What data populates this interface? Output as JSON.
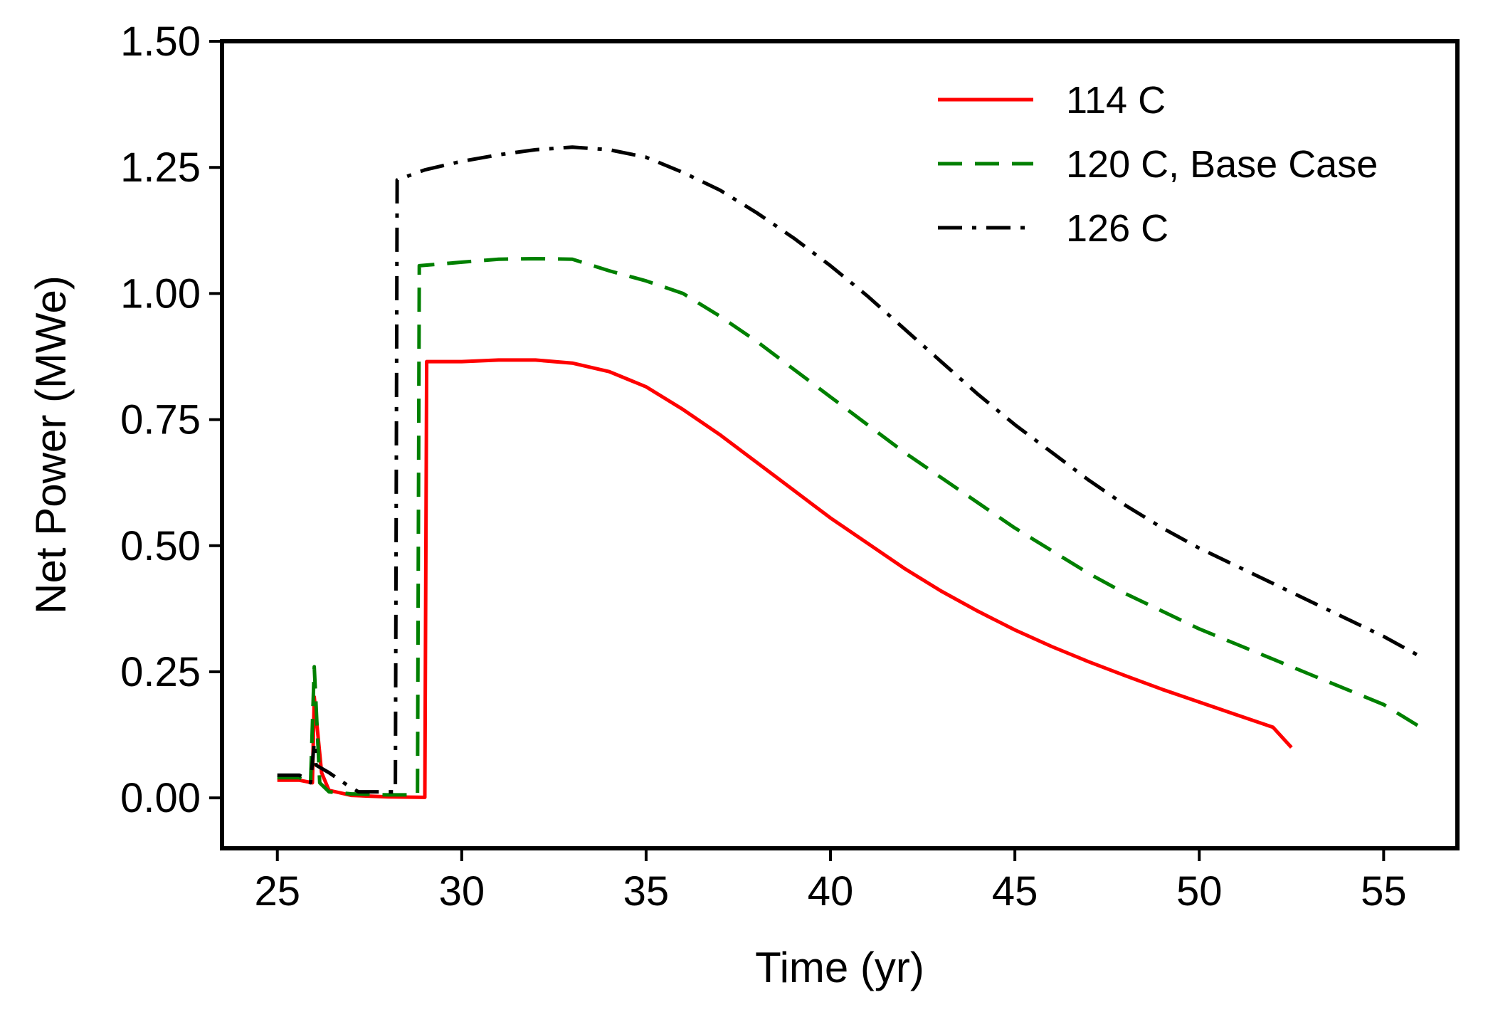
{
  "chart_data": {
    "type": "line",
    "title": "",
    "xlabel": "Time (yr)",
    "ylabel": "Net Power (MWe)",
    "xlim": [
      23.5,
      57.0
    ],
    "ylim": [
      -0.1,
      1.5
    ],
    "xticks": [
      25,
      30,
      35,
      40,
      45,
      50,
      55
    ],
    "yticks": [
      0.0,
      0.25,
      0.5,
      0.75,
      1.0,
      1.25,
      1.5
    ],
    "xtick_labels": [
      "25",
      "30",
      "35",
      "40",
      "45",
      "50",
      "55"
    ],
    "ytick_labels": [
      "0.00",
      "0.25",
      "0.50",
      "0.75",
      "1.00",
      "1.25",
      "1.50"
    ],
    "grid": false,
    "legend_position": "top-right",
    "series": [
      {
        "name": "114 C",
        "color": "#ff0000",
        "style": "solid",
        "points": [
          [
            25.0,
            0.035
          ],
          [
            25.6,
            0.035
          ],
          [
            25.95,
            0.03
          ],
          [
            26.0,
            0.2
          ],
          [
            26.2,
            0.05
          ],
          [
            26.4,
            0.015
          ],
          [
            27.0,
            0.005
          ],
          [
            28.0,
            0.002
          ],
          [
            29.0,
            0.001
          ],
          [
            29.05,
            0.865
          ],
          [
            30,
            0.865
          ],
          [
            31,
            0.868
          ],
          [
            32,
            0.868
          ],
          [
            33,
            0.862
          ],
          [
            34,
            0.845
          ],
          [
            35,
            0.815
          ],
          [
            36,
            0.77
          ],
          [
            37,
            0.72
          ],
          [
            38,
            0.665
          ],
          [
            39,
            0.61
          ],
          [
            40,
            0.555
          ],
          [
            41,
            0.505
          ],
          [
            42,
            0.455
          ],
          [
            43,
            0.41
          ],
          [
            44,
            0.37
          ],
          [
            45,
            0.333
          ],
          [
            46,
            0.3
          ],
          [
            47,
            0.27
          ],
          [
            48,
            0.242
          ],
          [
            49,
            0.215
          ],
          [
            50,
            0.19
          ],
          [
            51,
            0.165
          ],
          [
            52,
            0.14
          ],
          [
            52.5,
            0.1
          ]
        ]
      },
      {
        "name": "120 C, Base Case",
        "color": "#008000",
        "style": "dashed",
        "points": [
          [
            25.0,
            0.04
          ],
          [
            25.6,
            0.04
          ],
          [
            25.9,
            0.03
          ],
          [
            26.0,
            0.26
          ],
          [
            26.15,
            0.03
          ],
          [
            26.4,
            0.012
          ],
          [
            27.0,
            0.008
          ],
          [
            28.0,
            0.006
          ],
          [
            28.8,
            0.006
          ],
          [
            28.85,
            1.055
          ],
          [
            30,
            1.062
          ],
          [
            31,
            1.068
          ],
          [
            32,
            1.069
          ],
          [
            33,
            1.068
          ],
          [
            34,
            1.045
          ],
          [
            35,
            1.025
          ],
          [
            36,
            1.0
          ],
          [
            37,
            0.955
          ],
          [
            38,
            0.905
          ],
          [
            39,
            0.85
          ],
          [
            40,
            0.795
          ],
          [
            41,
            0.74
          ],
          [
            42,
            0.685
          ],
          [
            43,
            0.635
          ],
          [
            44,
            0.585
          ],
          [
            45,
            0.535
          ],
          [
            46,
            0.49
          ],
          [
            47,
            0.445
          ],
          [
            48,
            0.405
          ],
          [
            49,
            0.37
          ],
          [
            50,
            0.335
          ],
          [
            51,
            0.305
          ],
          [
            52,
            0.275
          ],
          [
            53,
            0.245
          ],
          [
            54,
            0.215
          ],
          [
            55,
            0.185
          ],
          [
            56,
            0.14
          ]
        ]
      },
      {
        "name": "126 C",
        "color": "#000000",
        "style": "dashdot",
        "points": [
          [
            25.0,
            0.045
          ],
          [
            25.6,
            0.045
          ],
          [
            25.9,
            0.03
          ],
          [
            26.0,
            0.11
          ],
          [
            26.05,
            0.065
          ],
          [
            26.4,
            0.05
          ],
          [
            26.9,
            0.025
          ],
          [
            27.2,
            0.012
          ],
          [
            28.2,
            0.012
          ],
          [
            28.25,
            1.225
          ],
          [
            29,
            1.245
          ],
          [
            30,
            1.262
          ],
          [
            31,
            1.275
          ],
          [
            32,
            1.285
          ],
          [
            33,
            1.29
          ],
          [
            34,
            1.285
          ],
          [
            35,
            1.27
          ],
          [
            36,
            1.24
          ],
          [
            37,
            1.205
          ],
          [
            38,
            1.16
          ],
          [
            39,
            1.11
          ],
          [
            40,
            1.055
          ],
          [
            41,
            0.995
          ],
          [
            42,
            0.93
          ],
          [
            43,
            0.865
          ],
          [
            44,
            0.8
          ],
          [
            45,
            0.74
          ],
          [
            46,
            0.685
          ],
          [
            47,
            0.63
          ],
          [
            48,
            0.58
          ],
          [
            49,
            0.535
          ],
          [
            50,
            0.495
          ],
          [
            51,
            0.46
          ],
          [
            52,
            0.425
          ],
          [
            53,
            0.39
          ],
          [
            54,
            0.355
          ],
          [
            55,
            0.32
          ],
          [
            56,
            0.28
          ]
        ]
      }
    ]
  }
}
